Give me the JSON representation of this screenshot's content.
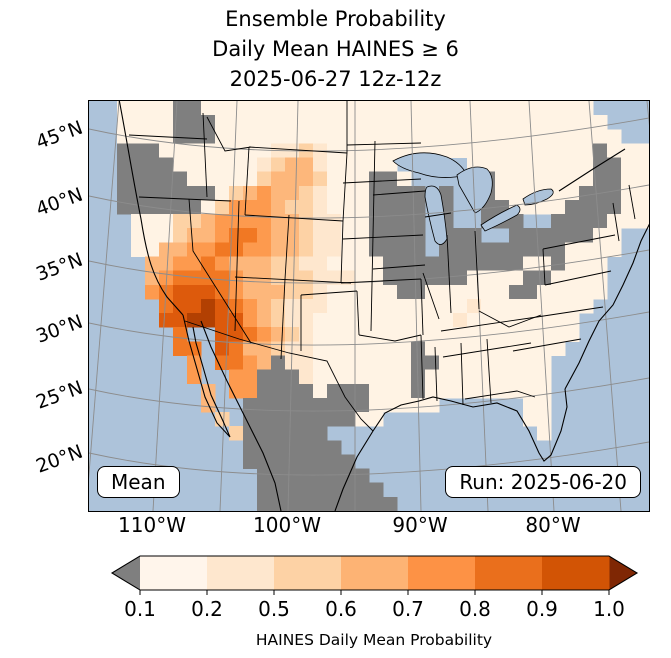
{
  "title": {
    "line1": "Ensemble Probability",
    "line2": "Daily Mean HAINES ≥ 6",
    "line3": "2025-06-27 12z-12z"
  },
  "map": {
    "annotations": {
      "mean_label": "Mean",
      "run_label": "Run: 2025-06-20"
    },
    "lat_labels": [
      "45°N",
      "40°N",
      "35°N",
      "30°N",
      "25°N",
      "20°N"
    ],
    "lon_labels": [
      "110°W",
      "100°W",
      "90°W",
      "80°W"
    ],
    "ocean_color": "#adc3da",
    "mask_color": "#7f7f7f",
    "grid": {
      "cols": 40,
      "rows": 29,
      "palette": {
        "0": "#fff3e4",
        "1": "#fee7ce",
        "2": "#fdd2a5",
        "3": "#fdb77b",
        "4": "#fd9a4e",
        "5": "#f17823",
        "6": "#dd5a0c",
        "7": "#b24002",
        "g": "#7f7f7f"
      },
      "rows_data": [
        "..0000gg0000000000000000000000000000....",
        "..0000ggg0000000000000000000000000000...",
        "..0000ggg00000000000000000000000000000..",
        "..ggg0000000011210000000000000000000g000",
        "..gggg0000001233100000.....000000000gg00",
        "..ggggg0000023332000gg0.....g0000000gg00",
        "..ggggggg02343321000gggg.g..g000000ggg00",
        "..gggggg024443221000gggg.g..gg0000gggg00",
        "...00022344443321100gggg.g..ggg..gggg000",
        "...00023345543321100gggg.ggg..gggggg00..",
        "...00334455443321100gggg.ggggggggg0000..",
        "....33445433322110000gggggggggg00g000...",
        "....34555543322211100gggggg0000gg0000...",
        "....456665433322100000gg000000gg00000...",
        ".....5667654321110000000000100000000....",
        ".....667766432110000000000100000000.....",
        "......5..66543210000000000000000000.....",
        "......55.65332110000000g0000000000......",
        ".......4.5543g110000000gg00000000.......",
        ".......4..44ggg10000000g000000000.......",
        "........3.44gggg0ggg000g000000000.......",
        "........3..ggggggggg00000......00.......",
        ".........2.gggggggg00..........00.......",
        "..........2gggggg...............0.......",
        "...........ggggggg......................",
        "...........gggggggg.....................",
        "............gggggggg....................",
        "............ggggggggg...................",
        "............gggggggggg.................."
      ]
    }
  },
  "colorbar": {
    "ticks": [
      "0.1",
      "0.2",
      "0.5",
      "0.6",
      "0.7",
      "0.8",
      "0.9",
      "1.0"
    ],
    "segment_colors": [
      "#fff5eb",
      "#fee7ce",
      "#fdd2a5",
      "#fdb374",
      "#fd9245",
      "#ea6f1c",
      "#d25405"
    ],
    "under_color": "#7f7f7f",
    "over_color": "#7f2704",
    "label": "HAINES Daily Mean Probability"
  }
}
